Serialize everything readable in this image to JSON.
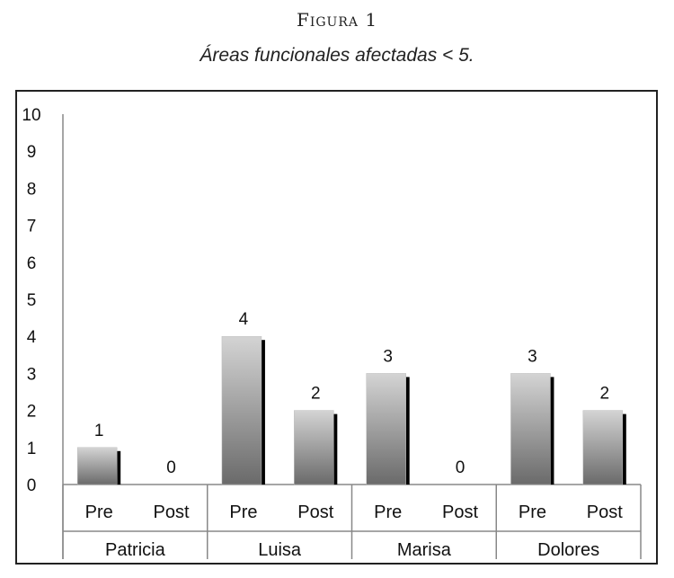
{
  "figure": {
    "label": "Figura 1",
    "caption": "Áreas funcionales afectadas < 5."
  },
  "chart_data": {
    "type": "bar",
    "title": "Áreas funcionales afectadas < 5.",
    "groups": [
      "Patricia",
      "Luisa",
      "Marisa",
      "Dolores"
    ],
    "subcategories": [
      "Pre",
      "Post"
    ],
    "values": [
      [
        1,
        0
      ],
      [
        4,
        2
      ],
      [
        3,
        0
      ],
      [
        3,
        2
      ]
    ],
    "ylim": [
      0,
      10
    ],
    "yticks": [
      "0",
      "1",
      "2",
      "3",
      "4",
      "5",
      "6",
      "7",
      "8",
      "9",
      "10"
    ],
    "data_labels": true,
    "grid": false,
    "colors": {
      "bar_light": "#d4d4d4",
      "bar_dark": "#6a6a6a",
      "bar_shadow": "#000000",
      "axis": "#888888"
    }
  }
}
